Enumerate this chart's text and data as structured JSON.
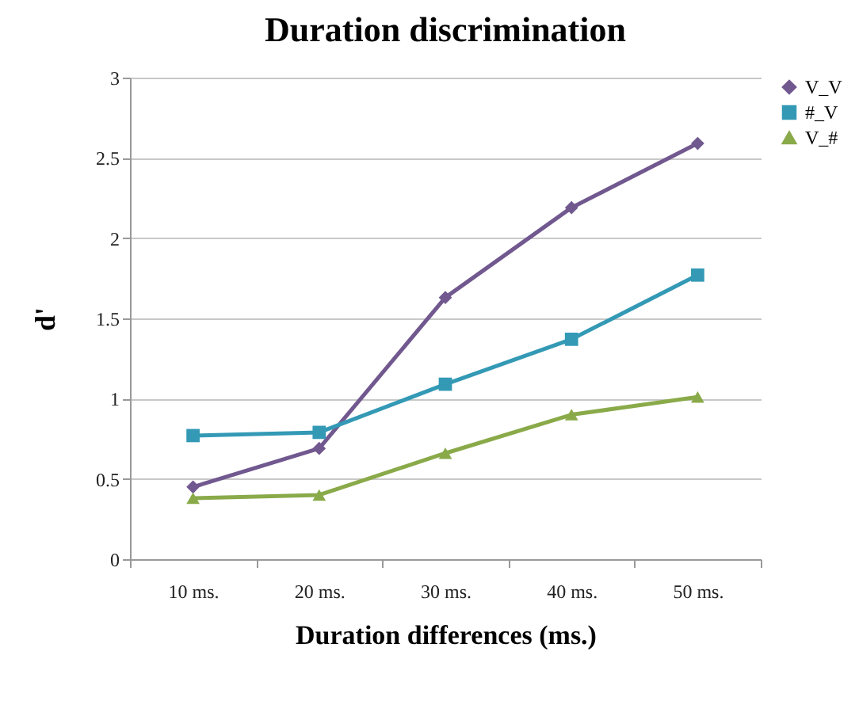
{
  "chart_data": {
    "type": "line",
    "title": "Duration discrimination",
    "xlabel": "Duration differences (ms.)",
    "ylabel": "d'",
    "categories": [
      "10 ms.",
      "20 ms.",
      "30 ms.",
      "40 ms.",
      "50 ms."
    ],
    "series": [
      {
        "name": "V_V",
        "color": "#71588f",
        "marker": "diamond",
        "values": [
          0.45,
          0.69,
          1.63,
          2.19,
          2.59
        ]
      },
      {
        "name": "#_V",
        "color": "#3399b5",
        "marker": "square",
        "values": [
          0.77,
          0.79,
          1.09,
          1.37,
          1.77
        ]
      },
      {
        "name": "V_#",
        "color": "#8aaa4a",
        "marker": "triangle",
        "values": [
          0.38,
          0.4,
          0.66,
          0.9,
          1.01
        ]
      }
    ],
    "ylim": [
      0,
      3
    ],
    "yticks": [
      0,
      0.5,
      1,
      1.5,
      2,
      2.5,
      3
    ],
    "grid": "y",
    "legend": "right",
    "line_style": "solid"
  }
}
